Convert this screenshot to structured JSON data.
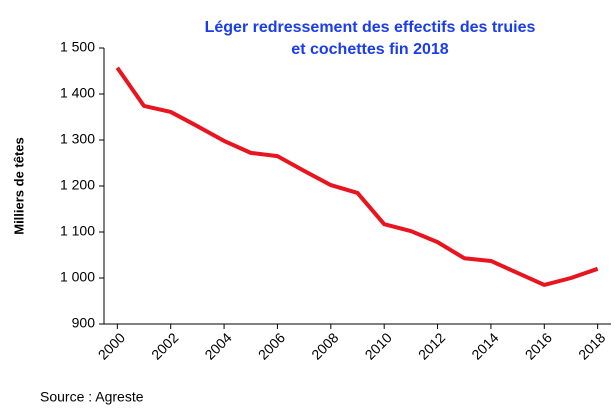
{
  "chart_data": {
    "type": "line",
    "title": [
      "Léger redressement des effectifs des truies",
      "et cochettes fin 2018"
    ],
    "y_label": "Milliers de têtes",
    "source": "Source : Agreste",
    "categories": [
      "2000",
      null,
      "2002",
      null,
      "2004",
      null,
      "2006",
      null,
      "2008",
      null,
      "2010",
      null,
      "2012",
      null,
      "2014",
      null,
      "2016",
      null,
      "2018"
    ],
    "series": [
      {
        "name": "Truies et cochettes",
        "color": "#e8141e",
        "values": [
          1457,
          1374,
          1361,
          1330,
          1298,
          1272,
          1265,
          1233,
          1202,
          1185,
          1117,
          1102,
          1078,
          1043,
          1037,
          1011,
          985,
          1000,
          1020
        ]
      }
    ],
    "ylim": [
      900,
      1500
    ],
    "yticks": [
      {
        "value": 900,
        "label": "900"
      },
      {
        "value": 1000,
        "label": "1 000"
      },
      {
        "value": 1100,
        "label": "1 100"
      },
      {
        "value": 1200,
        "label": "1 200"
      },
      {
        "value": 1300,
        "label": "1 300"
      },
      {
        "value": 1400,
        "label": "1 400"
      },
      {
        "value": 1500,
        "label": "1 500"
      }
    ],
    "grid": false
  }
}
